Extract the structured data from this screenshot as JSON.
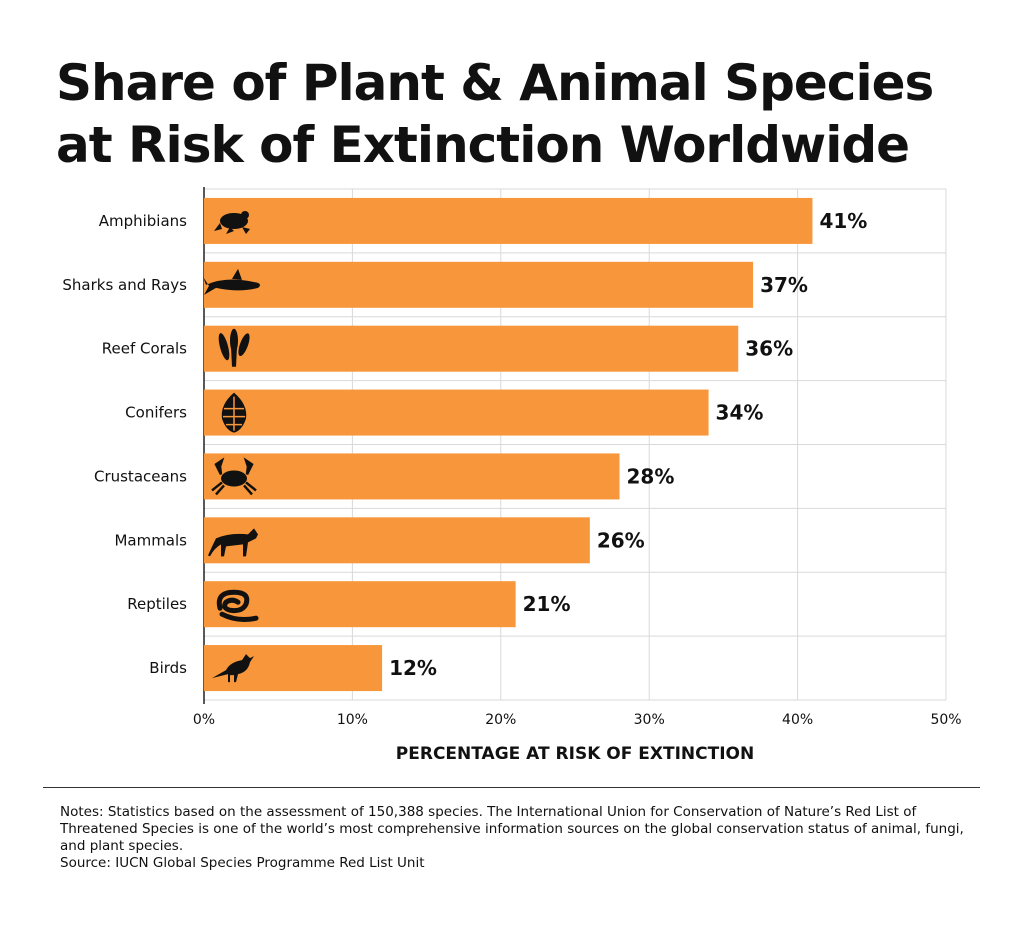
{
  "title": "Share of Plant & Animal Species at Risk of Extinction Worldwide",
  "notes": "Notes: Statistics based on the assessment of 150,388 species. The International Union for Conservation of Nature’s Red List of Threatened Species is one of the world’s most comprehensive information sources on the global conservation status of animal, fungi, and plant species.",
  "source": "Source: IUCN Global Species Programme Red List Unit",
  "colors": {
    "bar": "#F7963A",
    "grid": "#d9d9d9",
    "text": "#111111"
  },
  "chart_data": {
    "type": "bar",
    "orientation": "horizontal",
    "categories": [
      "Amphibians",
      "Sharks and Rays",
      "Reef Corals",
      "Conifers",
      "Crustaceans",
      "Mammals",
      "Reptiles",
      "Birds"
    ],
    "icons": [
      "frog-icon",
      "shark-icon",
      "coral-icon",
      "pinecone-icon",
      "crab-icon",
      "cheetah-icon",
      "snake-icon",
      "bird-icon"
    ],
    "values": [
      41,
      37,
      36,
      34,
      28,
      26,
      21,
      12
    ],
    "data_labels": [
      "41%",
      "37%",
      "36%",
      "34%",
      "28%",
      "26%",
      "21%",
      "12%"
    ],
    "xlim": [
      0,
      50
    ],
    "xticks": [
      "0%",
      "10%",
      "20%",
      "30%",
      "40%",
      "50%"
    ],
    "xlabel": "PERCENTAGE AT RISK OF EXTINCTION",
    "ylabel": "",
    "grid": true
  }
}
